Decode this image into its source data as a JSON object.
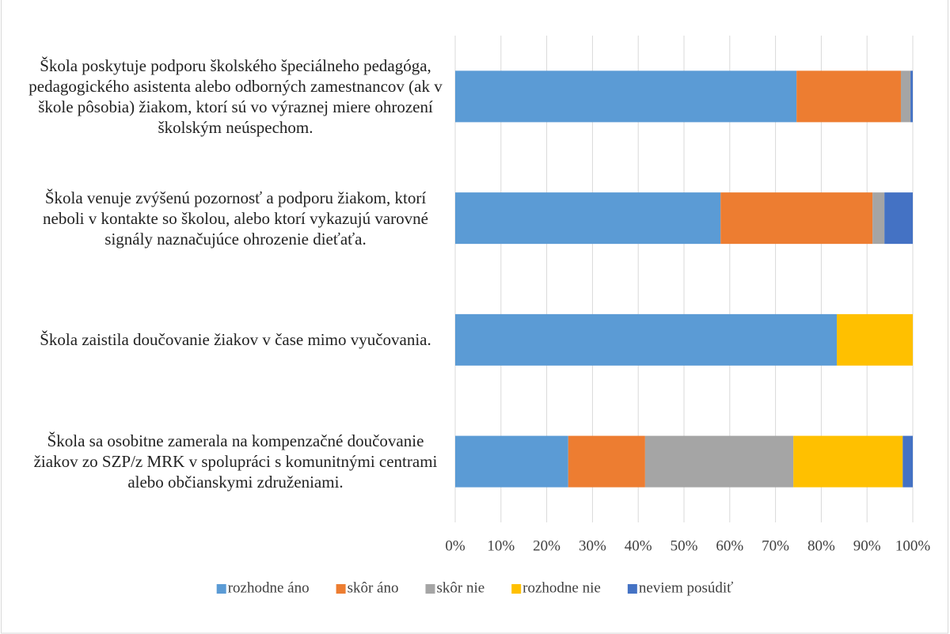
{
  "chart_data": {
    "type": "stacked_barh",
    "categories": [
      "Škola poskytuje podporu školského špeciálneho pedagóga, pedagogického asistenta  alebo odborných zamestnancov (ak v škole pôsobia) žiakom, ktorí sú vo výraznej miere ohrození školským neúspechom.",
      "Škola venuje zvýšenú pozornosť a podporu žiakom, ktorí neboli v kontakte so školou, alebo ktorí vykazujú varovné signály naznačujúce ohrozenie dieťaťa.",
      "Škola zaistila doučovanie žiakov v čase mimo vyučovania.",
      "Škola sa osobitne zamerala na kompenzačné doučovanie žiakov zo SZP/z MRK v spolupráci s komunitnými centrami alebo občianskymi združeniami."
    ],
    "series": [
      {
        "name": "rozhodne áno",
        "color": "#5b9bd5",
        "values": [
          74.6,
          58.0,
          83.4,
          24.7
        ]
      },
      {
        "name": "skôr áno",
        "color": "#ed7d31",
        "values": [
          22.8,
          33.2,
          0,
          16.8
        ]
      },
      {
        "name": "skôr nie",
        "color": "#a5a5a5",
        "values": [
          2.1,
          2.6,
          0,
          32.4
        ]
      },
      {
        "name": "rozhodne nie",
        "color": "#ffc000",
        "values": [
          0,
          0,
          16.6,
          23.9
        ]
      },
      {
        "name": "neviem posúdiť",
        "color": "#4472c4",
        "values": [
          0.5,
          6.2,
          0,
          2.2
        ]
      }
    ],
    "xlim": [
      0,
      100
    ],
    "xticks": [
      {
        "value": 0,
        "label": "0%"
      },
      {
        "value": 10,
        "label": "10%"
      },
      {
        "value": 20,
        "label": "20%"
      },
      {
        "value": 30,
        "label": "30%"
      },
      {
        "value": 40,
        "label": "40%"
      },
      {
        "value": 50,
        "label": "50%"
      },
      {
        "value": 60,
        "label": "60%"
      },
      {
        "value": 70,
        "label": "70%"
      },
      {
        "value": 80,
        "label": "80%"
      },
      {
        "value": 90,
        "label": "90%"
      },
      {
        "value": 100,
        "label": "100%"
      }
    ],
    "grid": true,
    "legend": "bottom"
  }
}
